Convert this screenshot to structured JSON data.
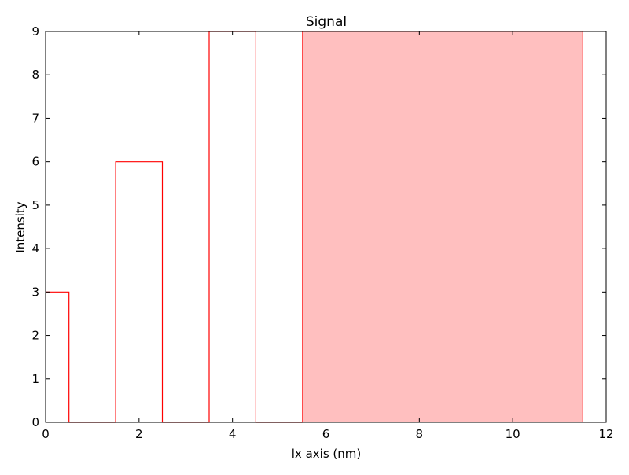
{
  "chart_data": {
    "type": "area",
    "title": "Signal",
    "xlabel": "lx axis (nm)",
    "ylabel": "Intensity",
    "xlim": [
      0,
      12
    ],
    "ylim": [
      0,
      9
    ],
    "xticks": [
      0,
      2,
      4,
      6,
      8,
      10,
      12
    ],
    "yticks": [
      0,
      1,
      2,
      3,
      4,
      5,
      6,
      7,
      8,
      9
    ],
    "grid": false,
    "line_color": "#ff0000",
    "fill_color": "#ffbfbf",
    "series": [
      {
        "values": [
          {
            "x": 0.0,
            "y": 3
          },
          {
            "x": 0.5,
            "y": 3
          },
          {
            "x": 0.5,
            "y": 0
          },
          {
            "x": 1.5,
            "y": 0
          },
          {
            "x": 1.5,
            "y": 6
          },
          {
            "x": 2.5,
            "y": 6
          },
          {
            "x": 2.5,
            "y": 0
          },
          {
            "x": 3.5,
            "y": 0
          },
          {
            "x": 3.5,
            "y": 9
          },
          {
            "x": 4.5,
            "y": 9
          },
          {
            "x": 4.5,
            "y": 0
          },
          {
            "x": 5.5,
            "y": 0
          }
        ]
      }
    ],
    "shaded_region": {
      "x": [
        5.5,
        11.5
      ],
      "y": [
        0,
        9
      ]
    }
  }
}
